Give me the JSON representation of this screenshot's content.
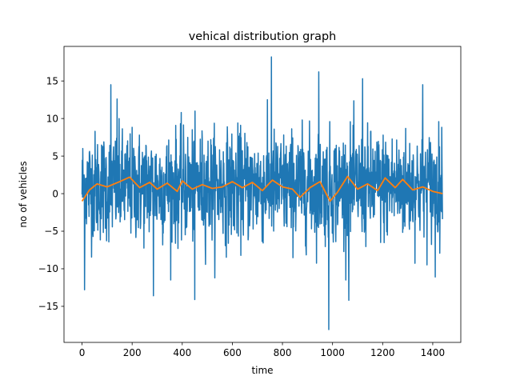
{
  "chart_data": {
    "type": "line",
    "title": "vehical distribution graph",
    "xlabel": "time",
    "ylabel": "no of vehicles",
    "xlim": [
      -72,
      1512
    ],
    "ylim": [
      -19.8,
      19.6
    ],
    "xticks": [
      0,
      200,
      400,
      600,
      800,
      1000,
      1200,
      1400
    ],
    "yticks": [
      -15,
      -10,
      -5,
      0,
      5,
      10,
      15
    ],
    "xtick_labels": [
      "0",
      "200",
      "400",
      "600",
      "800",
      "1000",
      "1200",
      "1400"
    ],
    "ytick_labels": [
      "−15",
      "−10",
      "−5",
      "0",
      "5",
      "10",
      "15"
    ],
    "grid": false,
    "series": [
      {
        "color": "#1f77b4",
        "x_start": 0,
        "x_end": 1439,
        "n_points": 1440,
        "spikes": [
          {
            "x": 10,
            "y": -12.8
          },
          {
            "x": 115,
            "y": 14.5
          },
          {
            "x": 140,
            "y": 12.6
          },
          {
            "x": 285,
            "y": -13.6
          },
          {
            "x": 450,
            "y": -14.1
          },
          {
            "x": 756,
            "y": 18.2
          },
          {
            "x": 945,
            "y": 16.2
          },
          {
            "x": 985,
            "y": -18.1
          },
          {
            "x": 1065,
            "y": -14.2
          },
          {
            "x": 1120,
            "y": 15.3
          },
          {
            "x": 1360,
            "y": 14.5
          },
          {
            "x": 1410,
            "y": -11.1
          }
        ]
      },
      {
        "color": "#ff7f0e",
        "x": [
          0,
          30,
          60,
          100,
          150,
          190,
          230,
          270,
          300,
          340,
          380,
          400,
          440,
          480,
          520,
          560,
          600,
          640,
          680,
          720,
          760,
          800,
          840,
          870,
          910,
          950,
          990,
          1020,
          1060,
          1100,
          1140,
          1180,
          1210,
          1250,
          1280,
          1320,
          1360,
          1400,
          1439
        ],
        "y": [
          -1.0,
          0.5,
          1.3,
          0.9,
          1.6,
          2.2,
          0.8,
          1.5,
          0.6,
          1.4,
          0.3,
          1.7,
          0.6,
          1.2,
          0.7,
          0.9,
          1.6,
          0.8,
          1.5,
          0.4,
          1.8,
          0.9,
          0.6,
          -0.5,
          0.8,
          1.6,
          -1.0,
          0.2,
          2.3,
          0.6,
          1.3,
          0.4,
          2.1,
          0.8,
          1.9,
          0.5,
          0.9,
          0.3,
          0.0
        ]
      }
    ]
  }
}
